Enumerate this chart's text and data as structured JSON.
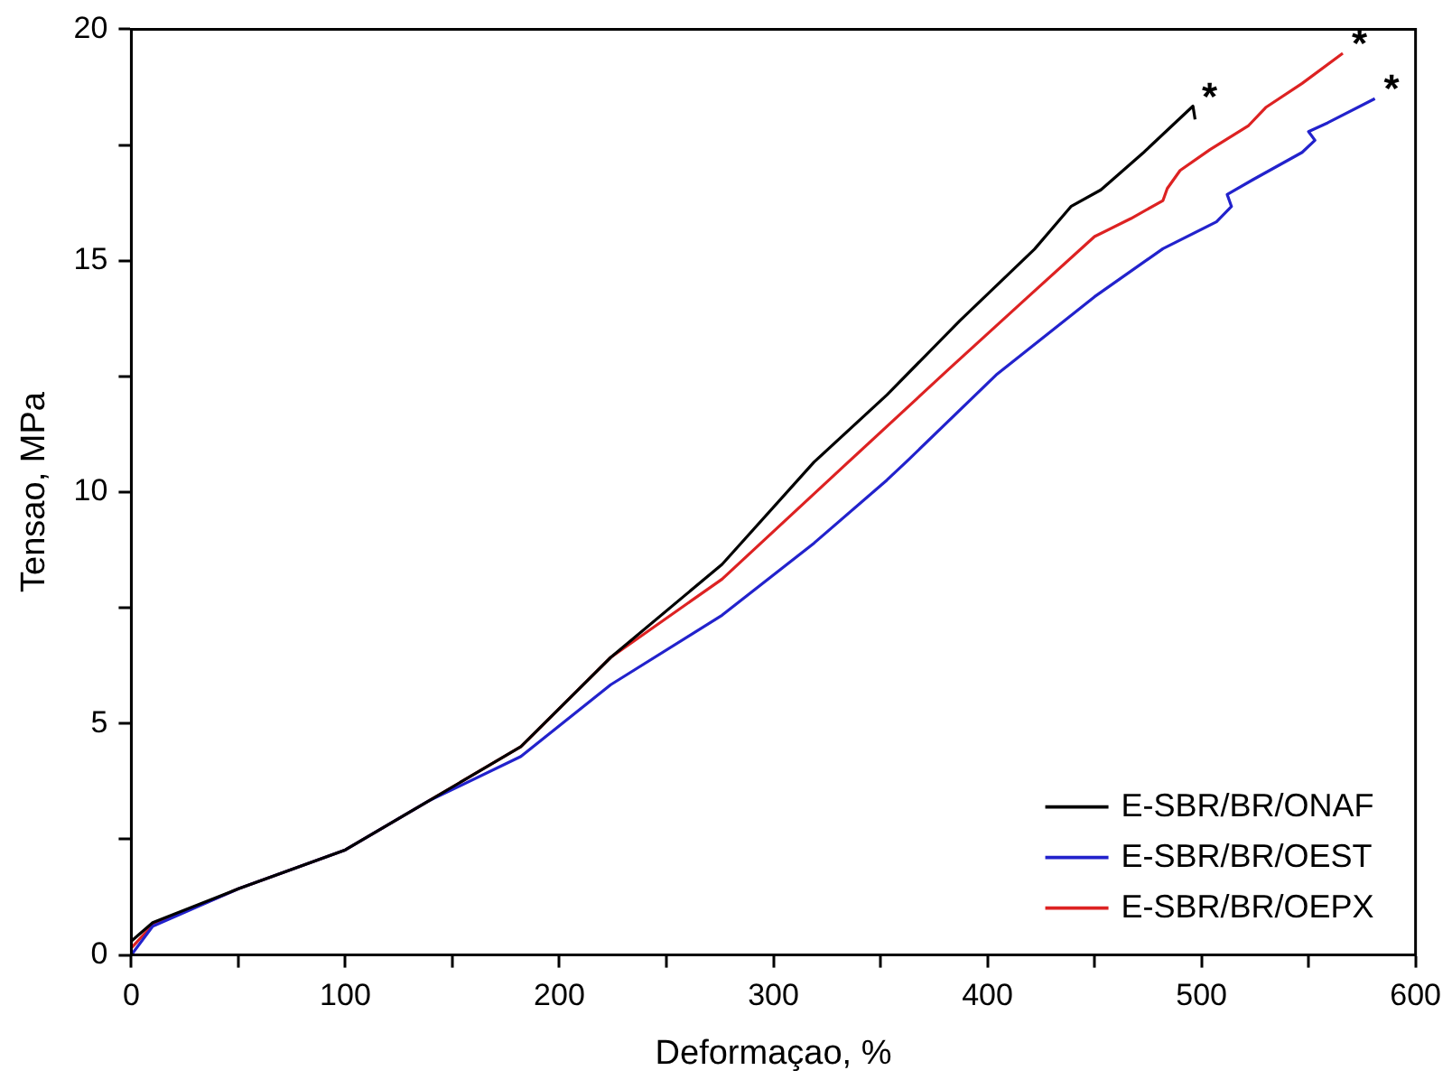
{
  "chart_data": {
    "type": "line",
    "xlabel": "Deformaçao, %",
    "ylabel": "Tensao, MPa",
    "xlim": [
      0,
      600
    ],
    "xticks": [
      0,
      {
        "value": 50,
        "label": null
      },
      100,
      {
        "value": 150,
        "label": null
      },
      200,
      {
        "value": 250,
        "label": null
      },
      300,
      {
        "value": 350,
        "label": null
      },
      400,
      {
        "value": 450,
        "label": null
      },
      500,
      {
        "value": 550,
        "label": null
      },
      600
    ],
    "ylim": [
      0,
      20
    ],
    "yticks": [
      0,
      {
        "value": 2.5,
        "label": null
      },
      5,
      {
        "value": 7.5,
        "label": null
      },
      10,
      {
        "value": 12.5,
        "label": null
      },
      15,
      {
        "value": 17.5,
        "label": null
      },
      20
    ],
    "grid": false,
    "legend": "bottom right",
    "marker": "none",
    "line_style": "solid",
    "series": [
      {
        "name": "E-SBR/BR/ONAF",
        "color": "#000000",
        "x": [
          0,
          10,
          50,
          100,
          139,
          182,
          224,
          276,
          319,
          353,
          387,
          422,
          439,
          453,
          473,
          496,
          497
        ],
        "values": [
          0.3,
          0.7,
          1.43,
          2.27,
          3.33,
          4.5,
          6.43,
          8.44,
          10.65,
          12.1,
          13.7,
          15.25,
          16.17,
          16.53,
          17.34,
          18.34,
          18.05
        ]
      },
      {
        "name": "E-SBR/BR/OEST",
        "color": "#2222cc",
        "x": [
          0,
          10,
          50,
          100,
          139,
          182,
          224,
          276,
          319,
          353,
          362,
          404,
          450,
          482,
          507,
          514,
          512,
          524,
          547,
          553,
          550,
          559,
          581
        ],
        "values": [
          0,
          0.62,
          1.43,
          2.27,
          3.33,
          4.29,
          5.84,
          7.34,
          8.9,
          10.26,
          10.65,
          12.53,
          14.22,
          15.26,
          15.84,
          16.17,
          16.43,
          16.75,
          17.34,
          17.6,
          17.79,
          17.98,
          18.5
        ]
      },
      {
        "name": "E-SBR/BR/OEPX",
        "color": "#dd2222",
        "x": [
          0,
          10,
          50,
          100,
          139,
          182,
          224,
          276,
          335,
          382,
          419,
          450,
          467,
          482,
          484,
          490,
          504,
          522,
          530,
          547,
          566
        ],
        "values": [
          0.15,
          0.65,
          1.43,
          2.27,
          3.33,
          4.5,
          6.43,
          8.12,
          10.65,
          12.66,
          14.22,
          15.52,
          15.91,
          16.3,
          16.56,
          16.95,
          17.4,
          17.92,
          18.31,
          18.83,
          19.48
        ]
      }
    ],
    "annotations": [
      {
        "text": "*",
        "x": 496,
        "y": 18.34
      },
      {
        "text": "*",
        "x": 566,
        "y": 19.48
      },
      {
        "text": "*",
        "x": 581,
        "y": 18.5
      }
    ]
  }
}
